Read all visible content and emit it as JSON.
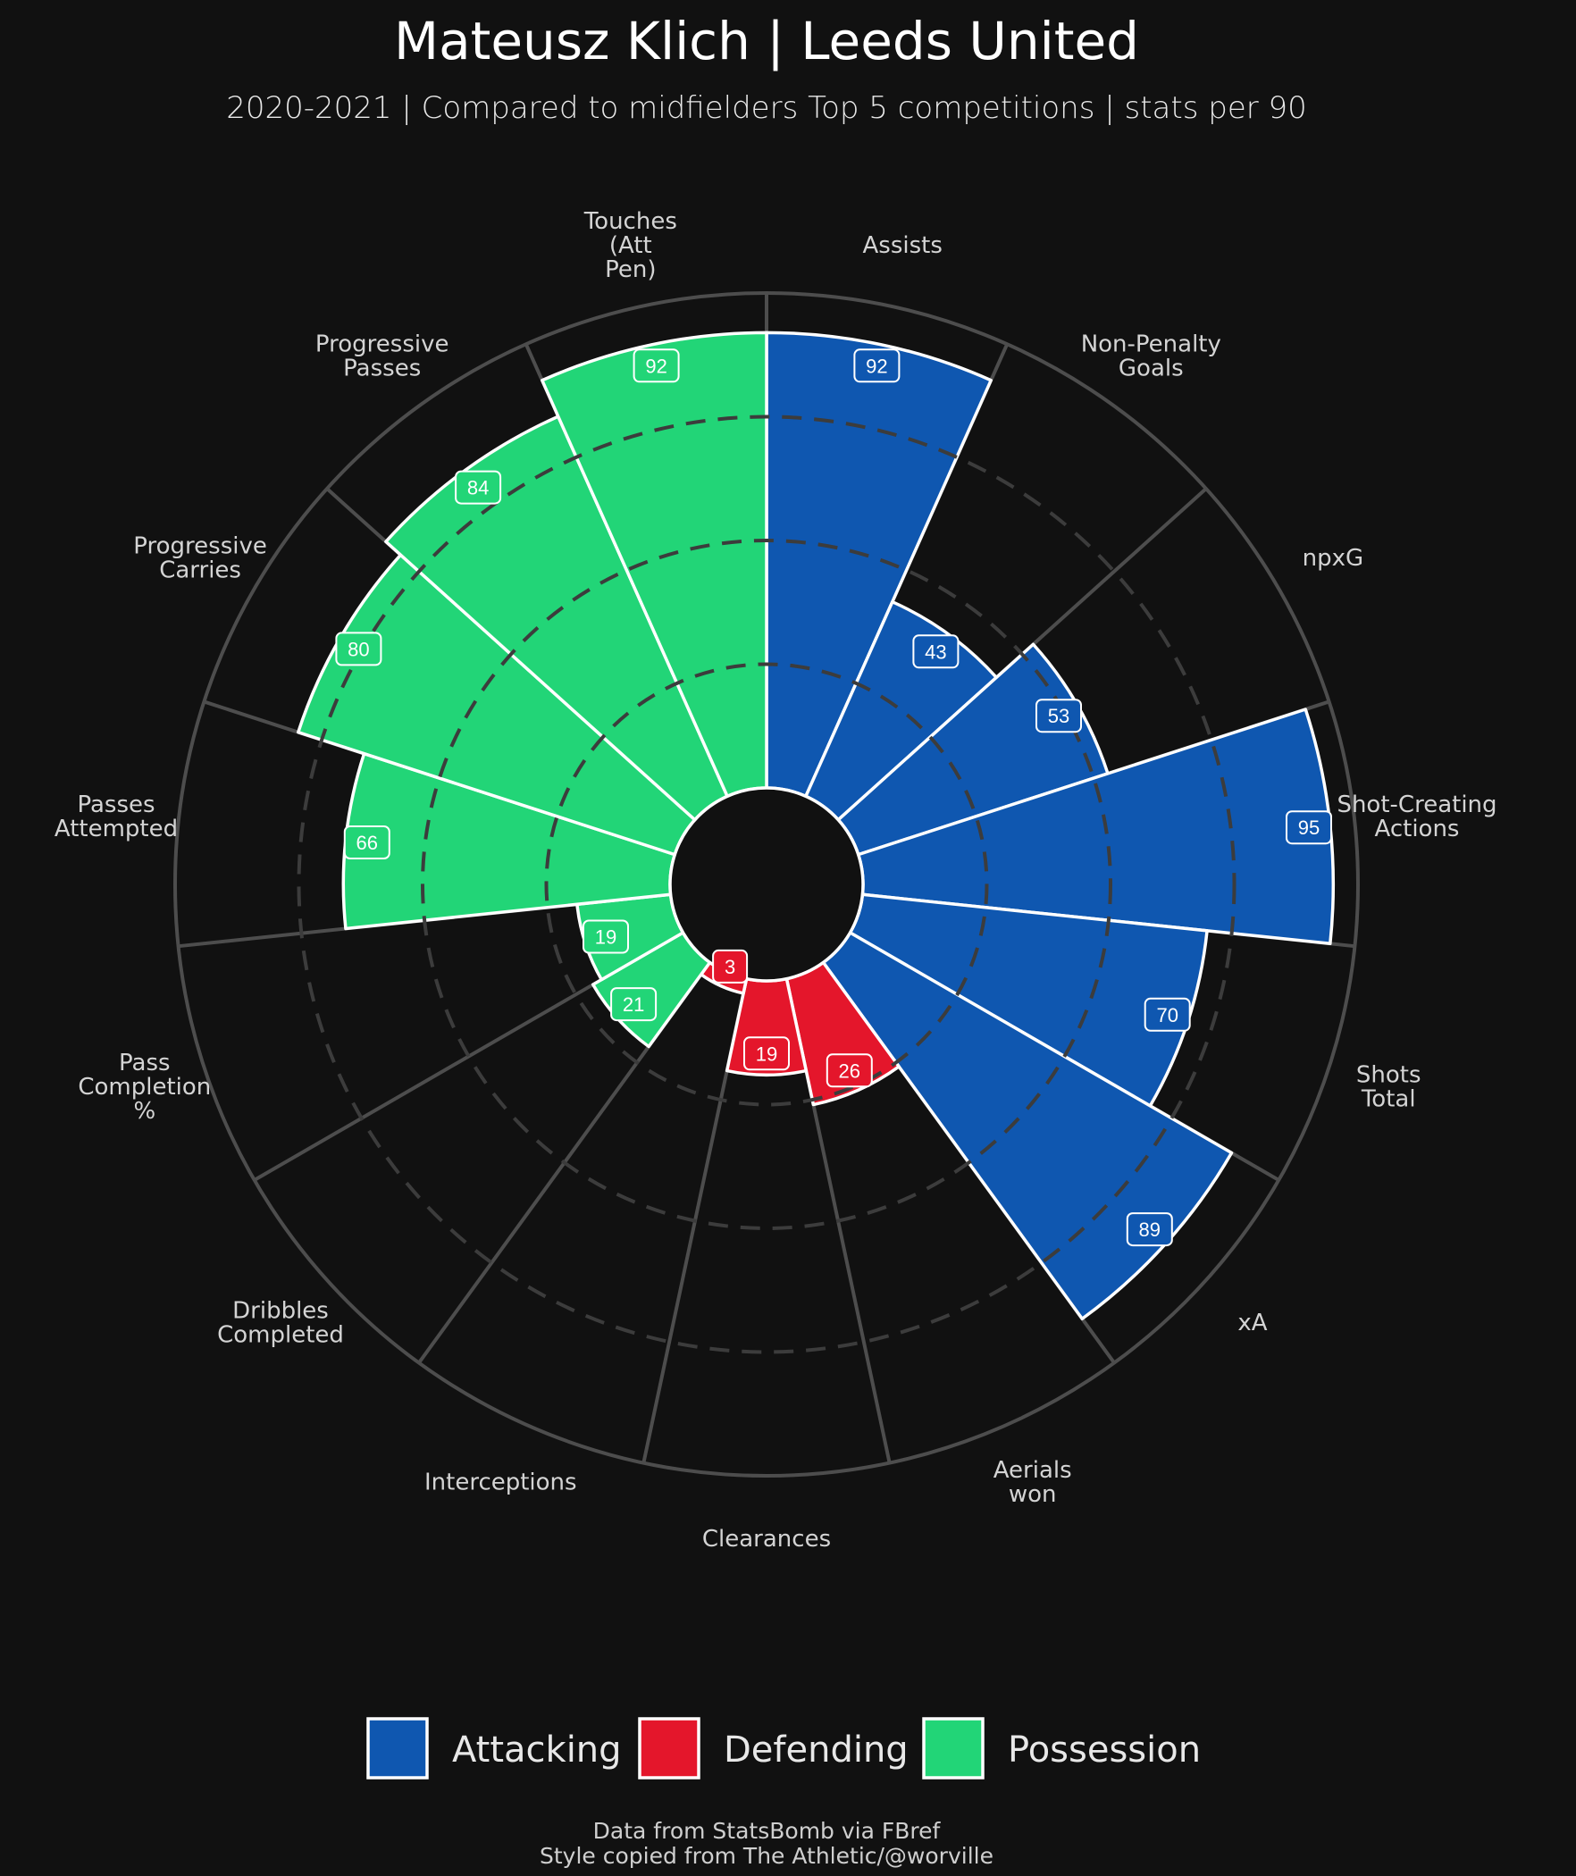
{
  "title": "Mateusz Klich | Leeds United",
  "subtitle": "2020-2021 | Compared to midfielders Top 5 competitions | stats per 90",
  "footer": {
    "line1": "Data from StatsBomb via FBref",
    "line2": "Style copied from The Athletic/@worville"
  },
  "colors": {
    "background": "#111111",
    "Attacking": "#0f57b0",
    "Defending": "#e4162b",
    "Possession": "#22d577",
    "grid": "#4d4d4d",
    "edge": "#ffffff"
  },
  "chart_data": {
    "type": "polar-bar",
    "scale": [
      0,
      100
    ],
    "grid": true,
    "legend_position": "bottom-center",
    "legend": [
      {
        "name": "Attacking",
        "color": "#0f57b0"
      },
      {
        "name": "Defending",
        "color": "#e4162b"
      },
      {
        "name": "Possession",
        "color": "#22d577"
      }
    ],
    "series": [
      {
        "label": [
          "Assists"
        ],
        "value": 92,
        "group": "Attacking"
      },
      {
        "label": [
          "Non-Penalty",
          "Goals"
        ],
        "value": 43,
        "group": "Attacking"
      },
      {
        "label": [
          "npxG"
        ],
        "value": 53,
        "group": "Attacking"
      },
      {
        "label": [
          "Shot-Creating",
          "Actions"
        ],
        "value": 95,
        "group": "Attacking"
      },
      {
        "label": [
          "Shots",
          "Total"
        ],
        "value": 70,
        "group": "Attacking"
      },
      {
        "label": [
          "xA"
        ],
        "value": 89,
        "group": "Attacking"
      },
      {
        "label": [
          "Aerials",
          "won"
        ],
        "value": 26,
        "group": "Defending"
      },
      {
        "label": [
          "Clearances"
        ],
        "value": 19,
        "group": "Defending"
      },
      {
        "label": [
          "Interceptions"
        ],
        "value": 3,
        "group": "Defending"
      },
      {
        "label": [
          "Dribbles",
          "Completed"
        ],
        "value": 21,
        "group": "Possession"
      },
      {
        "label": [
          "Pass",
          "Completion",
          "%"
        ],
        "value": 19,
        "group": "Possession"
      },
      {
        "label": [
          "Passes",
          "Attempted"
        ],
        "value": 66,
        "group": "Possession"
      },
      {
        "label": [
          "Progressive",
          "Carries"
        ],
        "value": 80,
        "group": "Possession"
      },
      {
        "label": [
          "Progressive",
          "Passes"
        ],
        "value": 84,
        "group": "Possession"
      },
      {
        "label": [
          "Touches",
          "(Att",
          "Pen)"
        ],
        "value": 92,
        "group": "Possession"
      }
    ]
  }
}
